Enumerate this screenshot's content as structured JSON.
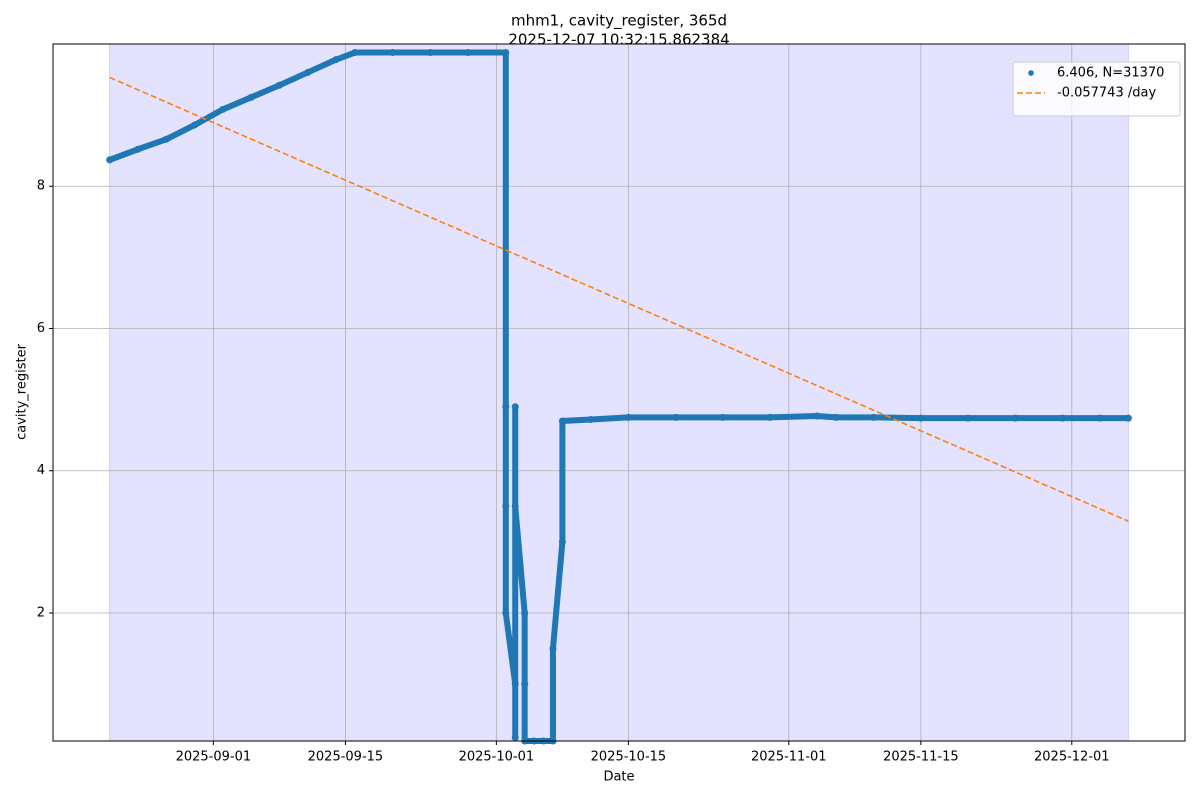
{
  "chart_data": {
    "type": "scatter",
    "title": "mhm1, cavity_register, 365d",
    "subtitle": "2025-12-07 10:32:15.862384",
    "x_label": "Date",
    "y_label": "cavity_register",
    "xlim": [
      "2025-08-15",
      "2025-12-13"
    ],
    "xticks": [
      "2025-09-01",
      "2025-09-15",
      "2025-10-01",
      "2025-10-15",
      "2025-11-01",
      "2025-11-15",
      "2025-12-01"
    ],
    "ylim": [
      0.2,
      10.0
    ],
    "yticks": [
      2,
      4,
      6,
      8
    ],
    "grid": true,
    "legend": "upper right",
    "shaded_span": {
      "x": [
        "2025-08-21",
        "2025-12-07"
      ],
      "color": "#0000ff"
    },
    "series": [
      {
        "name": "6.406, N=31370",
        "color": "#1f77b4",
        "kind": "scatter",
        "x": [
          "2025-08-21",
          "2025-08-24",
          "2025-08-27",
          "2025-08-30",
          "2025-09-02",
          "2025-09-05",
          "2025-09-08",
          "2025-09-11",
          "2025-09-14",
          "2025-09-16",
          "2025-09-20",
          "2025-09-24",
          "2025-09-28",
          "2025-10-02",
          "2025-10-02",
          "2025-10-02",
          "2025-10-02",
          "2025-10-03",
          "2025-10-03",
          "2025-10-03",
          "2025-10-03",
          "2025-10-04",
          "2025-10-04",
          "2025-10-04",
          "2025-10-05",
          "2025-10-06",
          "2025-10-07",
          "2025-10-07",
          "2025-10-08",
          "2025-10-08",
          "2025-10-11",
          "2025-10-15",
          "2025-10-20",
          "2025-10-25",
          "2025-10-30",
          "2025-11-04",
          "2025-11-06",
          "2025-11-10",
          "2025-11-15",
          "2025-11-20",
          "2025-11-25",
          "2025-11-30",
          "2025-12-04",
          "2025-12-07"
        ],
        "values": [
          8.37,
          8.52,
          8.66,
          8.86,
          9.08,
          9.25,
          9.42,
          9.6,
          9.78,
          9.88,
          9.88,
          9.88,
          9.88,
          9.88,
          4.9,
          3.5,
          2.0,
          1.0,
          0.25,
          4.9,
          3.5,
          2.0,
          1.0,
          0.2,
          0.2,
          0.2,
          0.2,
          1.5,
          3.0,
          4.7,
          4.72,
          4.75,
          4.75,
          4.75,
          4.75,
          4.77,
          4.75,
          4.75,
          4.74,
          4.74,
          4.74,
          4.74,
          4.74,
          4.74
        ]
      },
      {
        "name": "-0.057743 /day",
        "color": "#ff7f0e",
        "kind": "dashed-line",
        "x": [
          "2025-08-21",
          "2025-12-07"
        ],
        "values": [
          9.53,
          3.29
        ]
      }
    ]
  }
}
